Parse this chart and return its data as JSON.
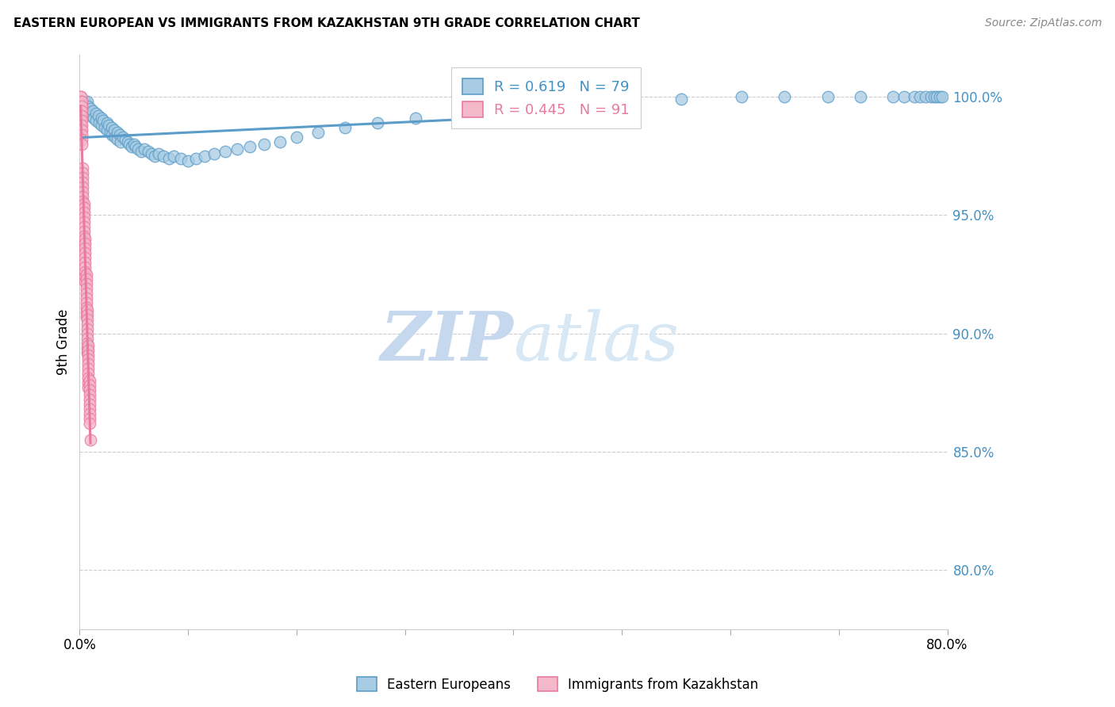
{
  "title": "EASTERN EUROPEAN VS IMMIGRANTS FROM KAZAKHSTAN 9TH GRADE CORRELATION CHART",
  "source": "Source: ZipAtlas.com",
  "ylabel": "9th Grade",
  "ytick_labels": [
    "100.0%",
    "95.0%",
    "90.0%",
    "85.0%",
    "80.0%"
  ],
  "ytick_values": [
    1.0,
    0.95,
    0.9,
    0.85,
    0.8
  ],
  "xlim": [
    0.0,
    0.8
  ],
  "ylim": [
    0.775,
    1.018
  ],
  "blue_R": 0.619,
  "blue_N": 79,
  "pink_R": 0.445,
  "pink_N": 91,
  "blue_color": "#a8cce4",
  "pink_color": "#f4b8cb",
  "blue_edge": "#5b9dc8",
  "pink_edge": "#e87aa0",
  "trendline_blue": "#5b9dc8",
  "trendline_pink": "#e87aa0",
  "legend_label_blue": "Eastern Europeans",
  "legend_label_pink": "Immigrants from Kazakhstan",
  "watermark_zip": "ZIP",
  "watermark_atlas": "atlas",
  "watermark_color": "#c8dff0",
  "blue_x": [
    0.005,
    0.005,
    0.007,
    0.008,
    0.01,
    0.01,
    0.012,
    0.013,
    0.015,
    0.015,
    0.017,
    0.018,
    0.02,
    0.02,
    0.022,
    0.023,
    0.025,
    0.025,
    0.027,
    0.028,
    0.03,
    0.03,
    0.032,
    0.033,
    0.035,
    0.035,
    0.037,
    0.038,
    0.04,
    0.042,
    0.044,
    0.046,
    0.048,
    0.05,
    0.052,
    0.054,
    0.057,
    0.06,
    0.063,
    0.066,
    0.069,
    0.073,
    0.077,
    0.082,
    0.087,
    0.093,
    0.1,
    0.107,
    0.115,
    0.124,
    0.134,
    0.145,
    0.157,
    0.17,
    0.185,
    0.2,
    0.22,
    0.245,
    0.275,
    0.31,
    0.35,
    0.395,
    0.445,
    0.5,
    0.555,
    0.61,
    0.65,
    0.69,
    0.72,
    0.75,
    0.76,
    0.77,
    0.775,
    0.78,
    0.785,
    0.788,
    0.79,
    0.793,
    0.795
  ],
  "blue_y": [
    0.998,
    0.995,
    0.998,
    0.996,
    0.995,
    0.992,
    0.994,
    0.991,
    0.993,
    0.99,
    0.992,
    0.989,
    0.991,
    0.988,
    0.99,
    0.987,
    0.989,
    0.986,
    0.988,
    0.985,
    0.987,
    0.984,
    0.986,
    0.983,
    0.985,
    0.982,
    0.984,
    0.981,
    0.983,
    0.982,
    0.981,
    0.98,
    0.979,
    0.98,
    0.979,
    0.978,
    0.977,
    0.978,
    0.977,
    0.976,
    0.975,
    0.976,
    0.975,
    0.974,
    0.975,
    0.974,
    0.973,
    0.974,
    0.975,
    0.976,
    0.977,
    0.978,
    0.979,
    0.98,
    0.981,
    0.983,
    0.985,
    0.987,
    0.989,
    0.991,
    0.993,
    0.995,
    0.997,
    0.998,
    0.999,
    1.0,
    1.0,
    1.0,
    1.0,
    1.0,
    1.0,
    1.0,
    1.0,
    1.0,
    1.0,
    1.0,
    1.0,
    1.0,
    1.0
  ],
  "pink_x": [
    0.001,
    0.001,
    0.001,
    0.001,
    0.001,
    0.001,
    0.001,
    0.001,
    0.001,
    0.001,
    0.002,
    0.002,
    0.002,
    0.002,
    0.002,
    0.002,
    0.002,
    0.002,
    0.002,
    0.002,
    0.003,
    0.003,
    0.003,
    0.003,
    0.003,
    0.003,
    0.003,
    0.003,
    0.003,
    0.003,
    0.004,
    0.004,
    0.004,
    0.004,
    0.004,
    0.004,
    0.004,
    0.004,
    0.004,
    0.004,
    0.005,
    0.005,
    0.005,
    0.005,
    0.005,
    0.005,
    0.005,
    0.005,
    0.005,
    0.005,
    0.006,
    0.006,
    0.006,
    0.006,
    0.006,
    0.006,
    0.006,
    0.006,
    0.006,
    0.006,
    0.007,
    0.007,
    0.007,
    0.007,
    0.007,
    0.007,
    0.007,
    0.007,
    0.007,
    0.007,
    0.008,
    0.008,
    0.008,
    0.008,
    0.008,
    0.008,
    0.008,
    0.008,
    0.008,
    0.008,
    0.009,
    0.009,
    0.009,
    0.009,
    0.009,
    0.009,
    0.009,
    0.009,
    0.009,
    0.009,
    0.01
  ],
  "pink_y": [
    1.0,
    1.0,
    0.998,
    0.997,
    0.996,
    0.994,
    0.992,
    0.99,
    0.988,
    0.986,
    0.998,
    0.996,
    0.994,
    0.992,
    0.99,
    0.988,
    0.986,
    0.984,
    0.982,
    0.98,
    0.97,
    0.968,
    0.966,
    0.964,
    0.962,
    0.96,
    0.958,
    0.956,
    0.954,
    0.952,
    0.955,
    0.953,
    0.951,
    0.949,
    0.947,
    0.945,
    0.943,
    0.941,
    0.939,
    0.937,
    0.94,
    0.938,
    0.936,
    0.934,
    0.932,
    0.93,
    0.928,
    0.926,
    0.924,
    0.922,
    0.925,
    0.923,
    0.921,
    0.919,
    0.917,
    0.915,
    0.913,
    0.911,
    0.909,
    0.907,
    0.91,
    0.908,
    0.906,
    0.904,
    0.902,
    0.9,
    0.898,
    0.896,
    0.894,
    0.892,
    0.895,
    0.893,
    0.891,
    0.889,
    0.887,
    0.885,
    0.883,
    0.881,
    0.879,
    0.877,
    0.88,
    0.878,
    0.876,
    0.874,
    0.872,
    0.87,
    0.868,
    0.866,
    0.864,
    0.862,
    0.855
  ]
}
